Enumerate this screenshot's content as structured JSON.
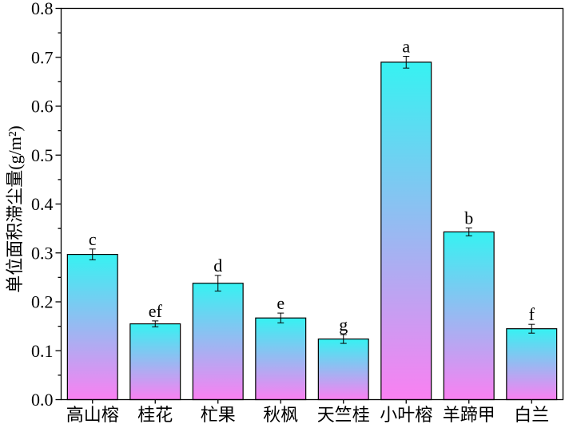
{
  "chart_data": {
    "type": "bar",
    "categories": [
      "高山榕",
      "桂花",
      "杧果",
      "秋枫",
      "天竺桂",
      "小叶榕",
      "羊蹄甲",
      "白兰"
    ],
    "values": [
      0.297,
      0.155,
      0.238,
      0.167,
      0.124,
      0.69,
      0.343,
      0.145
    ],
    "errors": [
      0.011,
      0.006,
      0.016,
      0.01,
      0.009,
      0.012,
      0.008,
      0.009
    ],
    "significance_labels": [
      "c",
      "ef",
      "d",
      "e",
      "g",
      "a",
      "b",
      "f"
    ],
    "ylabel": "单位面积滞尘量(g/m²)",
    "ylim": [
      0,
      0.8
    ],
    "ytick_labels": [
      "0.0",
      "0.1",
      "0.2",
      "0.3",
      "0.4",
      "0.5",
      "0.6",
      "0.7",
      "0.8"
    ],
    "grid": false
  },
  "colors": {
    "bar_top": "#36f2f2",
    "bar_bottom": "#fa80f2",
    "outline": "#000000"
  }
}
